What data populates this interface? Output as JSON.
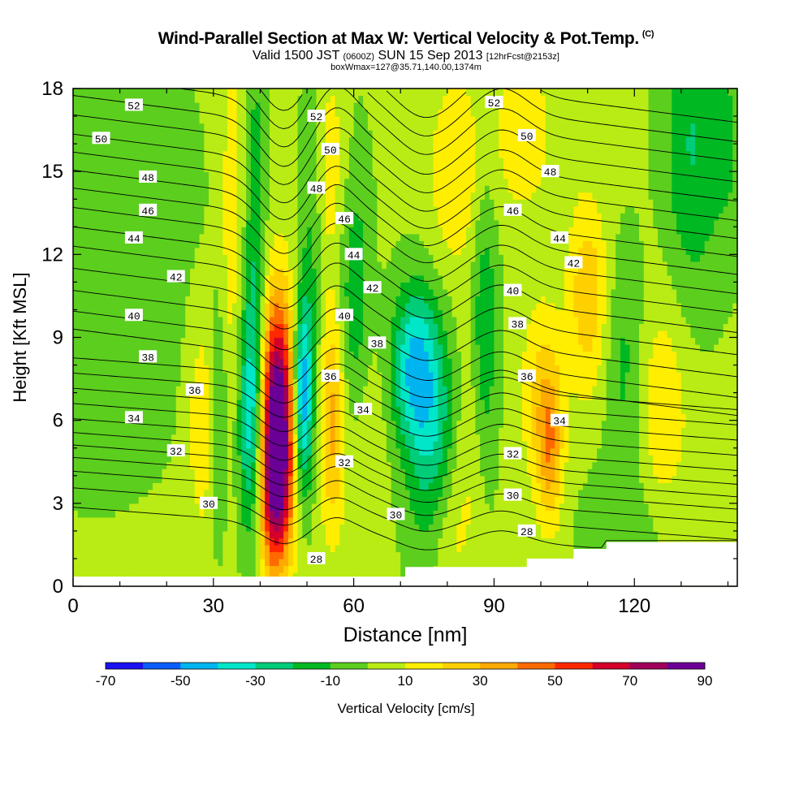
{
  "header": {
    "title": "Wind-Parallel Section at Max W: Vertical Velocity & Pot.Temp.",
    "title_tag": "(C)",
    "valid_prefix": "Valid 1500 JST",
    "valid_utc": "(0600Z)",
    "valid_date": "SUN 15 Sep 2013",
    "valid_fcst": "[12hrFcst@2153z]",
    "box_info": "boxWmax=127@35.71,140.00,1374m"
  },
  "colors": {
    "scale": [
      "#1a10f0",
      "#0a5cff",
      "#00b4f0",
      "#00e6c8",
      "#00cc7a",
      "#00b822",
      "#5cce1e",
      "#b8ec14",
      "#ffee00",
      "#ffd000",
      "#ffaa00",
      "#ff6a00",
      "#ff2800",
      "#d4002a",
      "#a0005a",
      "#6a0096"
    ],
    "contour": "#000000",
    "terrain": "#ffffff"
  },
  "chart_data": {
    "type": "heatmap",
    "xlabel": "Distance [nm]",
    "ylabel": "Height [Kft MSL]",
    "xlim": [
      0,
      142
    ],
    "ylim": [
      0,
      18
    ],
    "xticks": [
      0,
      30,
      60,
      90,
      120
    ],
    "yticks": [
      0,
      3,
      6,
      9,
      12,
      15,
      18
    ],
    "colorbar": {
      "label": "Vertical Velocity [cm/s]",
      "levels": [
        -70,
        -60,
        -50,
        -40,
        -30,
        -20,
        -10,
        0,
        10,
        20,
        30,
        40,
        50,
        60,
        70,
        80,
        90
      ],
      "tick_labels": [
        "-70",
        "-50",
        "-30",
        "-10",
        "10",
        "30",
        "50",
        "70",
        "90"
      ]
    },
    "background_w": 2,
    "w_features": [
      {
        "x": 5,
        "z": 12,
        "sx": 14,
        "sz": 5,
        "w": -12
      },
      {
        "x": 28,
        "z": 6,
        "sx": 2.5,
        "sz": 3,
        "w": 18
      },
      {
        "x": 31,
        "z": 6,
        "sx": 1.5,
        "sz": 3,
        "w": -22
      },
      {
        "x": 34,
        "z": 12,
        "sx": 2,
        "sz": 6,
        "w": 15
      },
      {
        "x": 38.5,
        "z": 6.2,
        "sx": 2.2,
        "sz": 3.2,
        "w": -55
      },
      {
        "x": 39,
        "z": 14,
        "sx": 1.5,
        "sz": 4,
        "w": -18
      },
      {
        "x": 43.5,
        "z": 6.2,
        "sx": 3,
        "sz": 3,
        "w": 95
      },
      {
        "x": 43,
        "z": 3,
        "sx": 2.5,
        "sz": 2,
        "w": 40
      },
      {
        "x": 49,
        "z": 6.8,
        "sx": 1.6,
        "sz": 2.5,
        "w": -60
      },
      {
        "x": 51,
        "z": 13,
        "sx": 1.8,
        "sz": 4,
        "w": -15
      },
      {
        "x": 55.5,
        "z": 6,
        "sx": 2,
        "sz": 2.8,
        "w": 32
      },
      {
        "x": 55,
        "z": 15,
        "sx": 3,
        "sz": 3,
        "w": 14
      },
      {
        "x": 60,
        "z": 10,
        "sx": 2.5,
        "sz": 4,
        "w": -22
      },
      {
        "x": 62,
        "z": 5,
        "sx": 3,
        "sz": 3,
        "w": 12
      },
      {
        "x": 73,
        "z": 8,
        "sx": 3.5,
        "sz": 2,
        "w": -40
      },
      {
        "x": 77,
        "z": 5,
        "sx": 4,
        "sz": 3,
        "w": -28
      },
      {
        "x": 80,
        "z": 2,
        "sx": 3,
        "sz": 2,
        "w": 14
      },
      {
        "x": 85,
        "z": 5,
        "sx": 3,
        "sz": 3,
        "w": 12
      },
      {
        "x": 88,
        "z": 9,
        "sx": 2,
        "sz": 4,
        "w": -22
      },
      {
        "x": 82,
        "z": 15,
        "sx": 4,
        "sz": 2.5,
        "w": 18
      },
      {
        "x": 96,
        "z": 16.5,
        "sx": 4,
        "sz": 2,
        "w": 18
      },
      {
        "x": 100,
        "z": 7,
        "sx": 3,
        "sz": 2.5,
        "w": 18
      },
      {
        "x": 102,
        "z": 5,
        "sx": 2,
        "sz": 2,
        "w": 30
      },
      {
        "x": 110,
        "z": 10.5,
        "sx": 3,
        "sz": 2.5,
        "w": 26
      },
      {
        "x": 118,
        "z": 8,
        "sx": 3,
        "sz": 3,
        "w": -15
      },
      {
        "x": 126,
        "z": 6,
        "sx": 4,
        "sz": 3,
        "w": 18
      },
      {
        "x": 132,
        "z": 16,
        "sx": 4,
        "sz": 4,
        "w": -22
      },
      {
        "x": 140,
        "z": 16,
        "sx": 3,
        "sz": 3,
        "w": -12
      },
      {
        "x": 120,
        "z": 2,
        "sx": 8,
        "sz": 2,
        "w": -10
      }
    ],
    "terrain": [
      [
        0,
        0.35
      ],
      [
        71,
        0.35
      ],
      [
        71,
        0.7
      ],
      [
        97,
        0.7
      ],
      [
        97,
        1.0
      ],
      [
        107,
        1.0
      ],
      [
        107,
        1.35
      ],
      [
        114,
        1.35
      ],
      [
        114,
        1.6
      ],
      [
        142,
        1.6
      ]
    ],
    "theta_levels": [
      28,
      29,
      30,
      31,
      32,
      33,
      34,
      35,
      36,
      37,
      38,
      39,
      40,
      41,
      42,
      43,
      44,
      45,
      46,
      47,
      48,
      49,
      50,
      51,
      52,
      53,
      54
    ],
    "theta_heights": [
      2.2,
      2.9,
      3.5,
      4.0,
      4.45,
      4.9,
      5.4,
      5.95,
      6.5,
      7.05,
      7.6,
      8.2,
      8.85,
      9.6,
      10.4,
      11.2,
      11.9,
      12.6,
      13.3,
      13.95,
      14.6,
      15.25,
      15.95,
      16.65,
      17.4,
      18.1,
      18.8
    ],
    "theta_tilt_per_nm": 0.022,
    "theta_waves": [
      {
        "x": 45,
        "sx": 5,
        "dz": -0.6
      },
      {
        "x": 56,
        "sx": 4,
        "dz": 0.35
      },
      {
        "x": 75,
        "sx": 6,
        "dz": -0.45
      },
      {
        "x": 92,
        "sx": 5,
        "dz": 0.3
      }
    ],
    "theta_labels": [
      {
        "x": 13,
        "z": 17.4,
        "text": "52"
      },
      {
        "x": 6,
        "z": 16.2,
        "text": "50"
      },
      {
        "x": 16,
        "z": 14.8,
        "text": "48"
      },
      {
        "x": 16,
        "z": 13.6,
        "text": "46"
      },
      {
        "x": 13,
        "z": 12.6,
        "text": "44"
      },
      {
        "x": 22,
        "z": 11.2,
        "text": "42"
      },
      {
        "x": 13,
        "z": 9.8,
        "text": "40"
      },
      {
        "x": 16,
        "z": 8.3,
        "text": "38"
      },
      {
        "x": 26,
        "z": 7.1,
        "text": "36"
      },
      {
        "x": 13,
        "z": 6.1,
        "text": "34"
      },
      {
        "x": 22,
        "z": 4.9,
        "text": "32"
      },
      {
        "x": 29,
        "z": 3.0,
        "text": "30"
      },
      {
        "x": 52,
        "z": 17.0,
        "text": "52"
      },
      {
        "x": 55,
        "z": 15.8,
        "text": "50"
      },
      {
        "x": 52,
        "z": 14.4,
        "text": "48"
      },
      {
        "x": 58,
        "z": 13.3,
        "text": "46"
      },
      {
        "x": 60,
        "z": 12.0,
        "text": "44"
      },
      {
        "x": 64,
        "z": 10.8,
        "text": "42"
      },
      {
        "x": 58,
        "z": 9.8,
        "text": "40"
      },
      {
        "x": 65,
        "z": 8.8,
        "text": "38"
      },
      {
        "x": 55,
        "z": 7.6,
        "text": "36"
      },
      {
        "x": 62,
        "z": 6.4,
        "text": "34"
      },
      {
        "x": 58,
        "z": 4.5,
        "text": "32"
      },
      {
        "x": 69,
        "z": 2.6,
        "text": "30"
      },
      {
        "x": 52,
        "z": 1.0,
        "text": "28"
      },
      {
        "x": 90,
        "z": 17.5,
        "text": "52"
      },
      {
        "x": 97,
        "z": 16.3,
        "text": "50"
      },
      {
        "x": 102,
        "z": 15.0,
        "text": "48"
      },
      {
        "x": 94,
        "z": 13.6,
        "text": "46"
      },
      {
        "x": 104,
        "z": 12.6,
        "text": "44"
      },
      {
        "x": 107,
        "z": 11.7,
        "text": "42"
      },
      {
        "x": 94,
        "z": 10.7,
        "text": "40"
      },
      {
        "x": 95,
        "z": 9.5,
        "text": "38"
      },
      {
        "x": 97,
        "z": 7.6,
        "text": "36"
      },
      {
        "x": 104,
        "z": 6.0,
        "text": "34"
      },
      {
        "x": 94,
        "z": 4.8,
        "text": "32"
      },
      {
        "x": 94,
        "z": 3.3,
        "text": "30"
      },
      {
        "x": 97,
        "z": 2.0,
        "text": "28"
      }
    ]
  }
}
